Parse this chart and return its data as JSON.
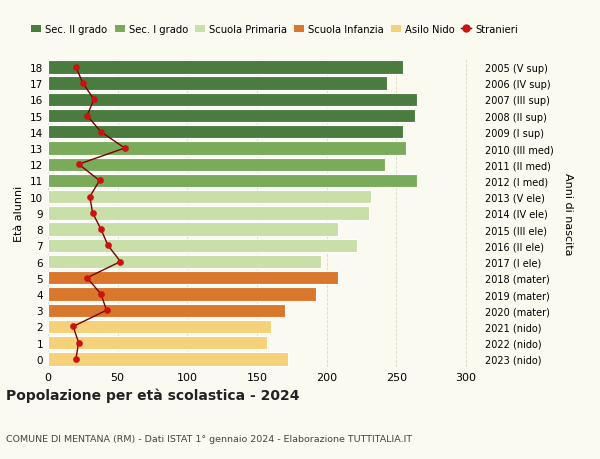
{
  "ages": [
    18,
    17,
    16,
    15,
    14,
    13,
    12,
    11,
    10,
    9,
    8,
    7,
    6,
    5,
    4,
    3,
    2,
    1,
    0
  ],
  "anni": [
    "2005 (V sup)",
    "2006 (IV sup)",
    "2007 (III sup)",
    "2008 (II sup)",
    "2009 (I sup)",
    "2010 (III med)",
    "2011 (II med)",
    "2012 (I med)",
    "2013 (V ele)",
    "2014 (IV ele)",
    "2015 (III ele)",
    "2016 (II ele)",
    "2017 (I ele)",
    "2018 (mater)",
    "2019 (mater)",
    "2020 (mater)",
    "2021 (nido)",
    "2022 (nido)",
    "2023 (nido)"
  ],
  "values": [
    255,
    243,
    265,
    263,
    255,
    257,
    242,
    265,
    232,
    230,
    208,
    222,
    196,
    208,
    192,
    170,
    160,
    157,
    172
  ],
  "stranieri": [
    20,
    25,
    33,
    28,
    38,
    55,
    22,
    37,
    30,
    32,
    38,
    43,
    52,
    28,
    38,
    42,
    18,
    22,
    20
  ],
  "bar_colors": [
    "#4a7c3f",
    "#4a7c3f",
    "#4a7c3f",
    "#4a7c3f",
    "#4a7c3f",
    "#7aab5a",
    "#7aab5a",
    "#7aab5a",
    "#c8dfa8",
    "#c8dfa8",
    "#c8dfa8",
    "#c8dfa8",
    "#c8dfa8",
    "#d9782d",
    "#d9782d",
    "#d9782d",
    "#f5d17a",
    "#f5d17a",
    "#f5d17a"
  ],
  "legend_colors": [
    "#4a7c3f",
    "#7aab5a",
    "#c8dfa8",
    "#d9782d",
    "#f5d17a",
    "#c0392b"
  ],
  "legend_labels": [
    "Sec. II grado",
    "Sec. I grado",
    "Scuola Primaria",
    "Scuola Infanzia",
    "Asilo Nido",
    "Stranieri"
  ],
  "title": "Popolazione per età scolastica - 2024",
  "subtitle": "COMUNE DI MENTANA (RM) - Dati ISTAT 1° gennaio 2024 - Elaborazione TUTTITALIA.IT",
  "ylabel_left": "Età alunni",
  "ylabel_right": "Anni di nascita",
  "xlim": [
    0,
    310
  ],
  "xticks": [
    0,
    50,
    100,
    150,
    200,
    250,
    300
  ],
  "bg_color": "#fafaf0",
  "grid_color": "#d8d8c8",
  "stranieri_line_color": "#7a0000",
  "stranieri_dot_color": "#cc1111"
}
